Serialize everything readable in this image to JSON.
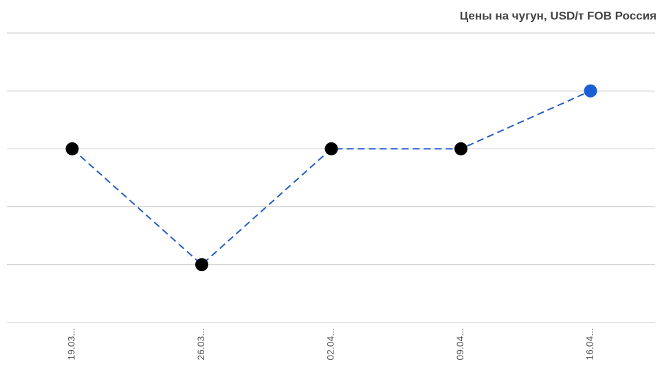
{
  "chart_data": {
    "type": "line",
    "title": "Цены на чугун, USD/т FOB Россия",
    "categories": [
      "19.03...",
      "26.03...",
      "02.04...",
      "09.04...",
      "16.04..."
    ],
    "series": [
      {
        "color": "#1f5bc6",
        "values": [
          3,
          1,
          3,
          3,
          4
        ]
      }
    ],
    "point_colors": [
      "#000000",
      "#000000",
      "#000000",
      "#000000",
      "#1a5fd6"
    ],
    "ylim": [
      0,
      5
    ],
    "yticks": [
      0,
      1,
      2,
      3,
      4,
      5
    ],
    "grid": true
  }
}
